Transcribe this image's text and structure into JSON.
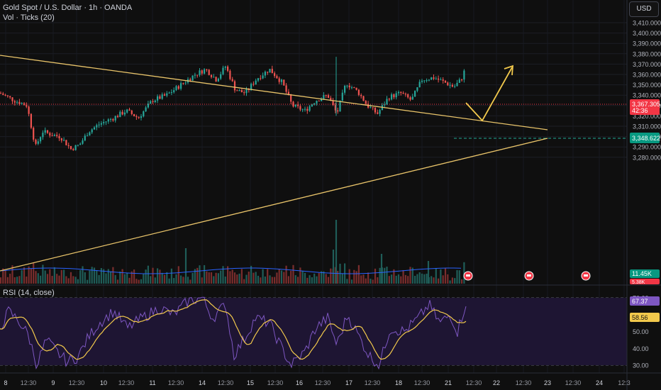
{
  "header": {
    "title": "Gold Spot / U.S. Dollar · 1h · OANDA",
    "volume_label": "Vol · Ticks (20)",
    "rsi_label": "RSI (14, close)",
    "currency_button": "USD"
  },
  "colors": {
    "background": "#0f0f0f",
    "up_candle": "#26a69a",
    "down_candle": "#ef5350",
    "trendline": "#e9c46a",
    "rsi_line": "#7e57c2",
    "rsi_ma": "#f2c94c",
    "price_badge": "#f23645",
    "level_badge": "#089981"
  },
  "chart_data": {
    "type": "candlestick",
    "price_axis": {
      "ticks": [
        "3,410.000",
        "3,400.000",
        "3,390.000",
        "3,380.000",
        "3,370.000",
        "3,360.000",
        "3,350.000",
        "3,340.000",
        "3,330.000",
        "3,320.000",
        "3,310.000",
        "3,300.000",
        "3,290.000",
        "3,280.000"
      ],
      "ylim": [
        3275,
        3415
      ]
    },
    "time_axis": {
      "ticks": [
        "8",
        "12:30",
        "9",
        "12:30",
        "10",
        "12:30",
        "11",
        "12:30",
        "14",
        "12:30",
        "15",
        "12:30",
        "16",
        "12:30",
        "17",
        "12:30",
        "18",
        "12:30",
        "21",
        "12:30",
        "22",
        "12:30",
        "23",
        "12:30",
        "24",
        "12:3"
      ]
    },
    "last_price": {
      "value": "3,367.305",
      "countdown": "42:36"
    },
    "breakout_level": {
      "value": "3,348.622"
    },
    "volume": {
      "last_up": "11.45K",
      "last_down": "5.38K"
    },
    "trendlines": [
      {
        "name": "descending resistance",
        "from": [
          0,
          3385
        ],
        "to": [
          772,
          3354
        ]
      },
      {
        "name": "ascending support",
        "from": [
          0,
          3278
        ],
        "to": [
          772,
          3350
        ]
      }
    ],
    "projection": {
      "points_x": [
        657,
        680,
        722
      ],
      "points_y": [
        3369,
        3358,
        3387
      ]
    },
    "rsi": {
      "ticks": [
        "70.00",
        "60.00",
        "50.00",
        "40.00",
        "30.00"
      ],
      "ylim": [
        27,
        74
      ],
      "value": "67.37",
      "ma_value": "58.56"
    },
    "event_icons": 4
  }
}
